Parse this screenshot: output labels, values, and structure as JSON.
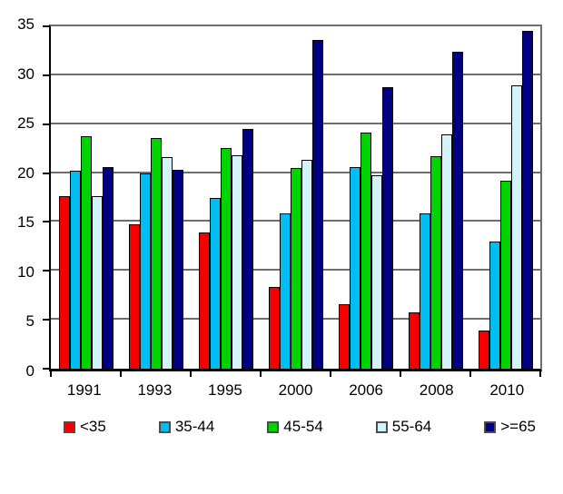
{
  "chart_data": {
    "type": "bar",
    "title": "",
    "xlabel": "",
    "ylabel": "",
    "categories": [
      "1991",
      "1993",
      "1995",
      "2000",
      "2006",
      "2008",
      "2010"
    ],
    "series": [
      {
        "name": "<35",
        "color": "#f40000",
        "values": [
          17.6,
          14.8,
          13.9,
          8.4,
          6.6,
          5.8,
          3.9
        ]
      },
      {
        "name": "35-44",
        "color": "#00bef2",
        "values": [
          20.2,
          20.0,
          17.5,
          15.9,
          20.6,
          15.9,
          13.0
        ]
      },
      {
        "name": "45-54",
        "color": "#00d400",
        "values": [
          23.8,
          23.6,
          22.6,
          20.5,
          24.1,
          21.7,
          19.2
        ]
      },
      {
        "name": "55-64",
        "color": "#d2f3f9",
        "values": [
          17.6,
          21.6,
          21.8,
          21.4,
          19.8,
          24.0,
          29.0
        ]
      },
      {
        "name": ">=65",
        "color": "#000080",
        "values": [
          20.6,
          20.3,
          24.5,
          33.6,
          28.8,
          32.4,
          34.5
        ]
      }
    ],
    "ylim": [
      0,
      35
    ],
    "ytick_step": 5,
    "ytick_labels": [
      "0",
      "5",
      "10",
      "15",
      "20",
      "25",
      "30",
      "35"
    ],
    "grid": true,
    "legend_position": "bottom",
    "plot_border_color": "#6e6e6e",
    "gridline_color": "#6e6e6e",
    "axis_color": "#000000",
    "background_color": "#ffffff"
  }
}
